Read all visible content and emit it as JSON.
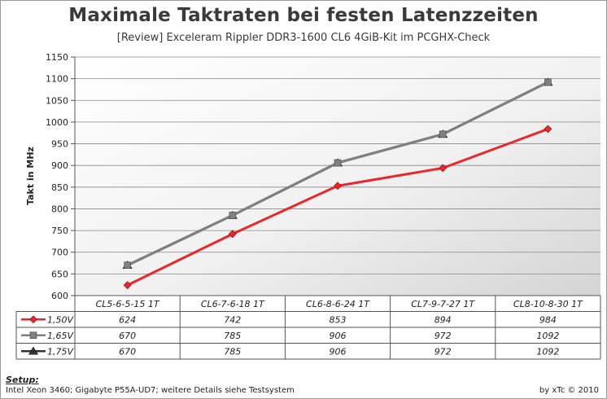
{
  "chart_data": {
    "type": "line",
    "title": "Maximale Taktraten bei festen Latenzzeiten",
    "subtitle": "[Review] Exceleram Rippler DDR3-1600 CL6 4GiB-Kit im PCGHX-Check",
    "ylabel": "Takt in MHz",
    "xlabel": "",
    "ylim": [
      600,
      1150
    ],
    "yticks": [
      600,
      650,
      700,
      750,
      800,
      850,
      900,
      950,
      1000,
      1050,
      1100,
      1150
    ],
    "grid": true,
    "legend": "data-table-left",
    "categories": [
      "CL5-6-5-15 1T",
      "CL6-7-6-18 1T",
      "CL6-8-6-24 1T",
      "CL7-9-7-27 1T",
      "CL8-10-8-30 1T"
    ],
    "series": [
      {
        "name": "1,50V",
        "color": "#e8282b",
        "marker": "diamond",
        "values": [
          624,
          742,
          853,
          894,
          984
        ]
      },
      {
        "name": "1,65V",
        "color": "#808080",
        "marker": "square",
        "values": [
          670,
          785,
          906,
          972,
          1092
        ]
      },
      {
        "name": "1,75V",
        "color": "#333333",
        "marker": "triangle",
        "values": [
          670,
          785,
          906,
          972,
          1092
        ]
      }
    ]
  },
  "footer": {
    "setup_label": "Setup:",
    "setup_text": "Intel Xeon 3460; Gigabyte P55A-UD7; weitere Details siehe Testsystem",
    "credit": "by xTc © 2010"
  }
}
